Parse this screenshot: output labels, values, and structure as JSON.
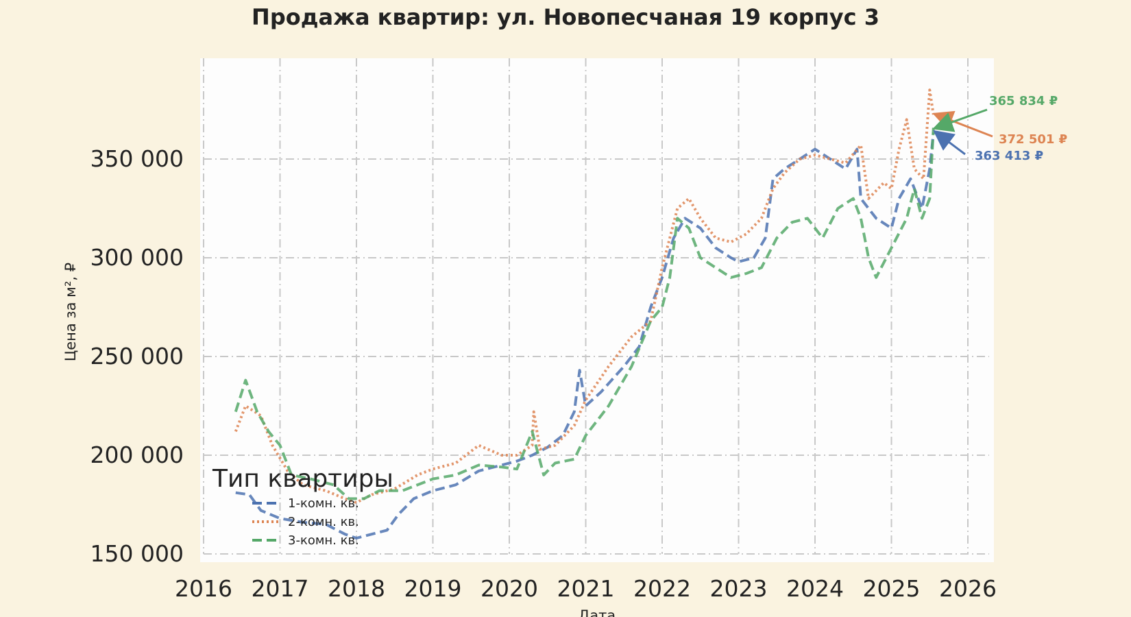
{
  "chart_data": {
    "type": "line",
    "title": "Продажа квартир: ул. Новопесчаная 19 корпус 3",
    "xlabel": "Дата",
    "ylabel": "Цена за м², ₽",
    "xlim": [
      2016,
      2026
    ],
    "ylim": [
      150000,
      400000
    ],
    "x_ticks": [
      "2016",
      "2017",
      "2018",
      "2019",
      "2020",
      "2021",
      "2022",
      "2023",
      "2024",
      "2025",
      "2026"
    ],
    "y_ticks": [
      "150 000",
      "200 000",
      "250 000",
      "300 000",
      "350 000"
    ],
    "grid": true,
    "legend": {
      "title": "Тип квартиры",
      "placement": "lower-left"
    },
    "series": [
      {
        "name": "1-комн. кв.",
        "color": "#4c72b0",
        "dash": "dashed",
        "end_label": "363 413 ₽",
        "points": [
          [
            2016.42,
            181000
          ],
          [
            2016.6,
            180000
          ],
          [
            2016.75,
            172000
          ],
          [
            2017.0,
            168000
          ],
          [
            2017.3,
            166000
          ],
          [
            2017.6,
            165000
          ],
          [
            2017.85,
            160000
          ],
          [
            2018.0,
            158000
          ],
          [
            2018.2,
            160000
          ],
          [
            2018.4,
            162000
          ],
          [
            2018.55,
            170000
          ],
          [
            2018.75,
            178000
          ],
          [
            2019.0,
            182000
          ],
          [
            2019.3,
            185000
          ],
          [
            2019.6,
            192000
          ],
          [
            2019.9,
            195000
          ],
          [
            2020.1,
            197000
          ],
          [
            2020.3,
            200000
          ],
          [
            2020.5,
            204000
          ],
          [
            2020.7,
            210000
          ],
          [
            2020.85,
            222000
          ],
          [
            2020.92,
            243000
          ],
          [
            2021.0,
            225000
          ],
          [
            2021.2,
            232000
          ],
          [
            2021.5,
            245000
          ],
          [
            2021.7,
            255000
          ],
          [
            2021.85,
            275000
          ],
          [
            2022.0,
            290000
          ],
          [
            2022.15,
            310000
          ],
          [
            2022.3,
            320000
          ],
          [
            2022.5,
            315000
          ],
          [
            2022.7,
            305000
          ],
          [
            2022.9,
            300000
          ],
          [
            2023.0,
            298000
          ],
          [
            2023.2,
            300000
          ],
          [
            2023.35,
            310000
          ],
          [
            2023.45,
            340000
          ],
          [
            2023.6,
            345000
          ],
          [
            2023.8,
            350000
          ],
          [
            2024.0,
            355000
          ],
          [
            2024.2,
            350000
          ],
          [
            2024.4,
            345000
          ],
          [
            2024.55,
            355000
          ],
          [
            2024.6,
            330000
          ],
          [
            2024.8,
            320000
          ],
          [
            2025.0,
            315000
          ],
          [
            2025.1,
            330000
          ],
          [
            2025.25,
            340000
          ],
          [
            2025.4,
            325000
          ],
          [
            2025.5,
            345000
          ],
          [
            2025.55,
            363413
          ]
        ]
      },
      {
        "name": "2-комн. кв.",
        "color": "#dd8452",
        "dash": "dotted",
        "end_label": "372 501 ₽",
        "points": [
          [
            2016.42,
            212000
          ],
          [
            2016.55,
            225000
          ],
          [
            2016.75,
            220000
          ],
          [
            2016.9,
            205000
          ],
          [
            2017.1,
            192000
          ],
          [
            2017.3,
            185000
          ],
          [
            2017.6,
            182000
          ],
          [
            2017.85,
            178000
          ],
          [
            2018.0,
            176000
          ],
          [
            2018.2,
            180000
          ],
          [
            2018.5,
            183000
          ],
          [
            2018.8,
            190000
          ],
          [
            2019.0,
            193000
          ],
          [
            2019.3,
            196000
          ],
          [
            2019.6,
            205000
          ],
          [
            2019.9,
            200000
          ],
          [
            2020.1,
            200000
          ],
          [
            2020.3,
            205000
          ],
          [
            2020.32,
            222000
          ],
          [
            2020.4,
            203000
          ],
          [
            2020.6,
            205000
          ],
          [
            2020.85,
            215000
          ],
          [
            2021.0,
            228000
          ],
          [
            2021.3,
            245000
          ],
          [
            2021.6,
            260000
          ],
          [
            2021.85,
            268000
          ],
          [
            2022.0,
            295000
          ],
          [
            2022.2,
            325000
          ],
          [
            2022.35,
            330000
          ],
          [
            2022.5,
            320000
          ],
          [
            2022.7,
            310000
          ],
          [
            2022.9,
            308000
          ],
          [
            2023.1,
            312000
          ],
          [
            2023.3,
            320000
          ],
          [
            2023.45,
            335000
          ],
          [
            2023.6,
            343000
          ],
          [
            2023.8,
            350000
          ],
          [
            2024.0,
            352000
          ],
          [
            2024.2,
            350000
          ],
          [
            2024.4,
            348000
          ],
          [
            2024.6,
            357000
          ],
          [
            2024.7,
            330000
          ],
          [
            2024.9,
            338000
          ],
          [
            2025.0,
            335000
          ],
          [
            2025.1,
            355000
          ],
          [
            2025.2,
            370000
          ],
          [
            2025.3,
            345000
          ],
          [
            2025.42,
            340000
          ],
          [
            2025.5,
            385000
          ],
          [
            2025.55,
            372501
          ]
        ]
      },
      {
        "name": "3-комн. кв.",
        "color": "#55a868",
        "dash": "dashed",
        "end_label": "365 834 ₽",
        "points": [
          [
            2016.42,
            222000
          ],
          [
            2016.55,
            238000
          ],
          [
            2016.7,
            222000
          ],
          [
            2016.85,
            212000
          ],
          [
            2017.0,
            205000
          ],
          [
            2017.15,
            190000
          ],
          [
            2017.4,
            188000
          ],
          [
            2017.7,
            185000
          ],
          [
            2017.9,
            178000
          ],
          [
            2018.1,
            178000
          ],
          [
            2018.3,
            182000
          ],
          [
            2018.6,
            182000
          ],
          [
            2018.8,
            185000
          ],
          [
            2019.0,
            188000
          ],
          [
            2019.3,
            190000
          ],
          [
            2019.6,
            195000
          ],
          [
            2019.9,
            194000
          ],
          [
            2020.1,
            193000
          ],
          [
            2020.3,
            212000
          ],
          [
            2020.45,
            190000
          ],
          [
            2020.6,
            196000
          ],
          [
            2020.85,
            198000
          ],
          [
            2021.0,
            210000
          ],
          [
            2021.3,
            225000
          ],
          [
            2021.6,
            245000
          ],
          [
            2021.85,
            268000
          ],
          [
            2022.0,
            275000
          ],
          [
            2022.1,
            290000
          ],
          [
            2022.2,
            320000
          ],
          [
            2022.35,
            315000
          ],
          [
            2022.5,
            300000
          ],
          [
            2022.7,
            295000
          ],
          [
            2022.9,
            290000
          ],
          [
            2023.1,
            292000
          ],
          [
            2023.3,
            295000
          ],
          [
            2023.5,
            310000
          ],
          [
            2023.7,
            318000
          ],
          [
            2023.9,
            320000
          ],
          [
            2024.1,
            310000
          ],
          [
            2024.3,
            325000
          ],
          [
            2024.5,
            330000
          ],
          [
            2024.6,
            320000
          ],
          [
            2024.7,
            300000
          ],
          [
            2024.8,
            290000
          ],
          [
            2025.0,
            305000
          ],
          [
            2025.2,
            320000
          ],
          [
            2025.3,
            335000
          ],
          [
            2025.4,
            320000
          ],
          [
            2025.5,
            330000
          ],
          [
            2025.55,
            365834
          ]
        ]
      }
    ]
  }
}
